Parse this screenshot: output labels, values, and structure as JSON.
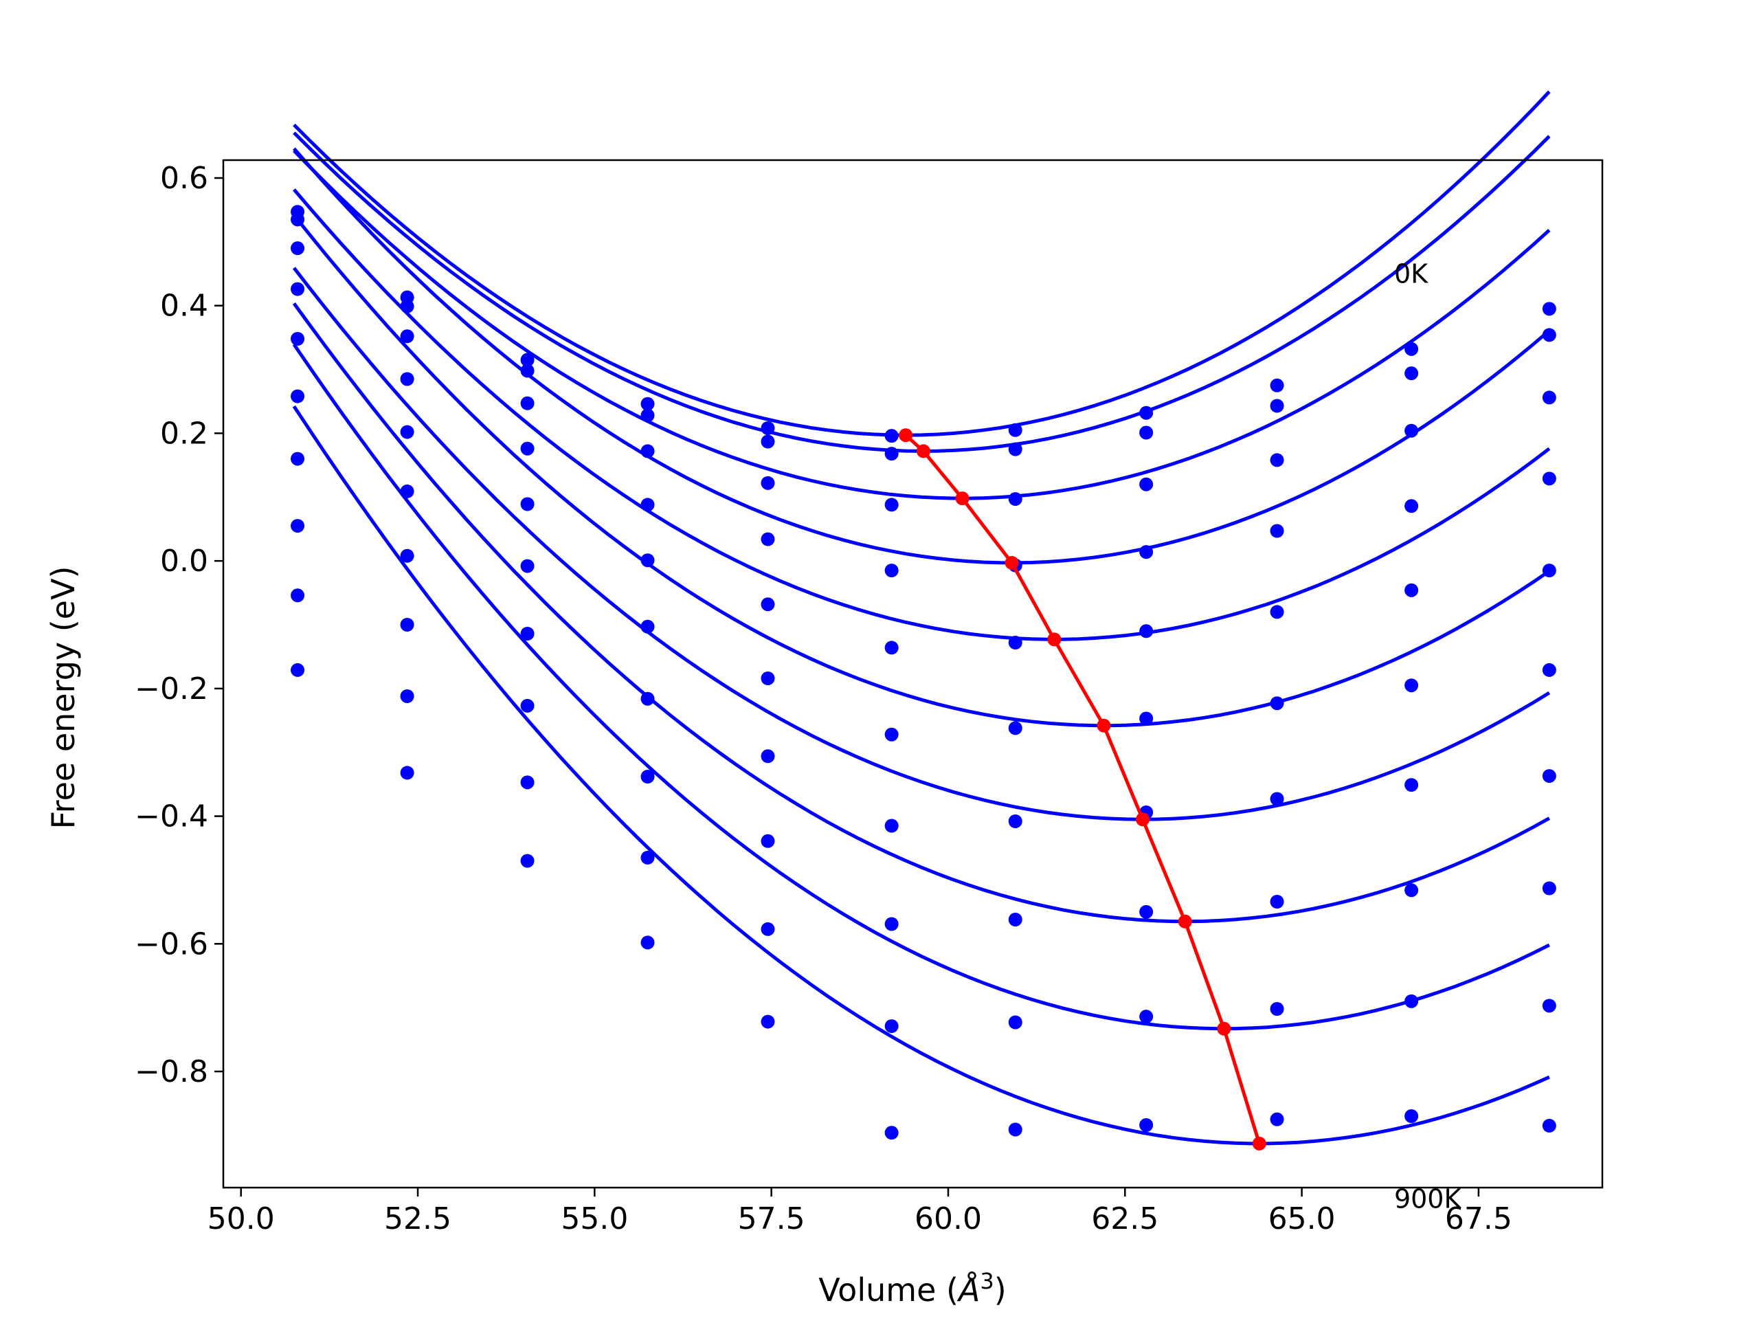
{
  "chart_data": {
    "type": "scatter",
    "title": "",
    "xlabel": "Volume (",
    "xlabel_symbol": "Å",
    "xlabel_superscript": "3",
    "xlabel_close": ")",
    "ylabel": "Free energy (eV)",
    "xlim": [
      49.75,
      69.25
    ],
    "ylim": [
      -0.982,
      0.628
    ],
    "grid": false,
    "x_ticks": [
      50.0,
      52.5,
      55.0,
      57.5,
      60.0,
      62.5,
      65.0,
      67.5
    ],
    "x_tick_labels": [
      "50.0",
      "52.5",
      "55.0",
      "57.5",
      "60.0",
      "62.5",
      "65.0",
      "67.5"
    ],
    "y_ticks": [
      0.6,
      0.4,
      0.2,
      0.0,
      -0.2,
      -0.4,
      -0.6,
      -0.8
    ],
    "y_tick_labels": [
      "0.6",
      "0.4",
      "0.2",
      "0.0",
      "−0.2",
      "−0.4",
      "−0.6",
      "−0.8"
    ],
    "annotations": [
      {
        "text": "0K",
        "x": 66.5,
        "y": 0.45
      },
      {
        "text": "900K",
        "x": 66.5,
        "y": -1.0
      }
    ],
    "colors": {
      "series": "#0000ff",
      "minima": "#ff0000",
      "axes": "#000000"
    },
    "volumes": [
      50.8,
      52.35,
      54.05,
      55.75,
      57.45,
      59.2,
      60.95,
      62.8,
      64.65,
      66.55,
      68.5
    ],
    "series": [
      {
        "points": [
          0.547,
          0.413,
          0.315,
          0.246,
          0.208,
          0.196,
          0.205,
          0.232,
          0.275,
          0.332,
          0.395
        ],
        "fit_min_v": 59.4,
        "fit_min_e": 0.197,
        "fit_k": 0.0065,
        "fit_v0": 50.75,
        "fit_v1": 68.5
      },
      {
        "points": [
          0.535,
          0.399,
          0.298,
          0.228,
          0.187,
          0.168,
          0.175,
          0.201,
          0.243,
          0.294,
          0.354
        ],
        "fit_min_v": 59.65,
        "fit_min_e": 0.172,
        "fit_k": 0.0063,
        "fit_v0": 50.75,
        "fit_v1": 68.5
      },
      {
        "points": [
          0.49,
          0.352,
          0.247,
          0.172,
          0.122,
          0.088,
          0.097,
          0.12,
          0.158,
          0.204,
          0.256
        ],
        "fit_min_v": 60.2,
        "fit_min_e": 0.098,
        "fit_k": 0.0061,
        "fit_v0": 50.75,
        "fit_v1": 68.5
      },
      {
        "points": [
          0.426,
          0.285,
          0.176,
          0.088,
          0.034,
          -0.015,
          -0.007,
          0.014,
          0.047,
          0.086,
          0.129
        ],
        "fit_min_v": 60.9,
        "fit_min_e": -0.003,
        "fit_k": 0.0063,
        "fit_v0": 50.75,
        "fit_v1": 68.5
      },
      {
        "points": [
          0.348,
          0.202,
          0.089,
          0.001,
          -0.068,
          -0.136,
          -0.128,
          -0.11,
          -0.08,
          -0.046,
          -0.015
        ],
        "fit_min_v": 61.5,
        "fit_min_e": -0.123,
        "fit_k": 0.0061,
        "fit_v0": 50.75,
        "fit_v1": 68.5
      },
      {
        "points": [
          0.258,
          0.109,
          -0.008,
          -0.103,
          -0.184,
          -0.272,
          -0.262,
          -0.247,
          -0.223,
          -0.195,
          -0.171
        ],
        "fit_min_v": 62.2,
        "fit_min_e": -0.258,
        "fit_k": 0.0061,
        "fit_v0": 50.75,
        "fit_v1": 68.5
      },
      {
        "points": [
          0.16,
          0.008,
          -0.114,
          -0.216,
          -0.306,
          -0.415,
          -0.408,
          -0.394,
          -0.373,
          -0.351,
          -0.337
        ],
        "fit_min_v": 62.75,
        "fit_min_e": -0.405,
        "fit_k": 0.006,
        "fit_v0": 50.75,
        "fit_v1": 68.5
      },
      {
        "points": [
          0.055,
          -0.1,
          -0.227,
          -0.338,
          -0.439,
          -0.569,
          -0.562,
          -0.55,
          -0.534,
          -0.516,
          -0.513
        ],
        "fit_min_v": 63.35,
        "fit_min_e": -0.565,
        "fit_k": 0.0061,
        "fit_v0": 50.75,
        "fit_v1": 68.5
      },
      {
        "points": [
          -0.054,
          -0.212,
          -0.347,
          -0.465,
          -0.577,
          -0.729,
          -0.723,
          -0.714,
          -0.702,
          -0.69,
          -0.697
        ],
        "fit_min_v": 63.9,
        "fit_min_e": -0.733,
        "fit_k": 0.0062,
        "fit_v0": 50.75,
        "fit_v1": 68.5
      },
      {
        "points": [
          -0.171,
          -0.332,
          -0.47,
          -0.598,
          -0.722,
          -0.896,
          -0.891,
          -0.884,
          -0.875,
          -0.87,
          -0.885
        ],
        "fit_min_v": 64.4,
        "fit_min_e": -0.913,
        "fit_k": 0.0062,
        "fit_v0": 50.75,
        "fit_v1": 68.5
      }
    ],
    "minima": {
      "x": [
        59.4,
        59.65,
        60.2,
        60.9,
        61.5,
        62.2,
        62.75,
        63.35,
        63.9,
        64.4
      ],
      "y": [
        0.197,
        0.172,
        0.098,
        -0.003,
        -0.123,
        -0.258,
        -0.405,
        -0.565,
        -0.733,
        -0.913
      ]
    }
  }
}
